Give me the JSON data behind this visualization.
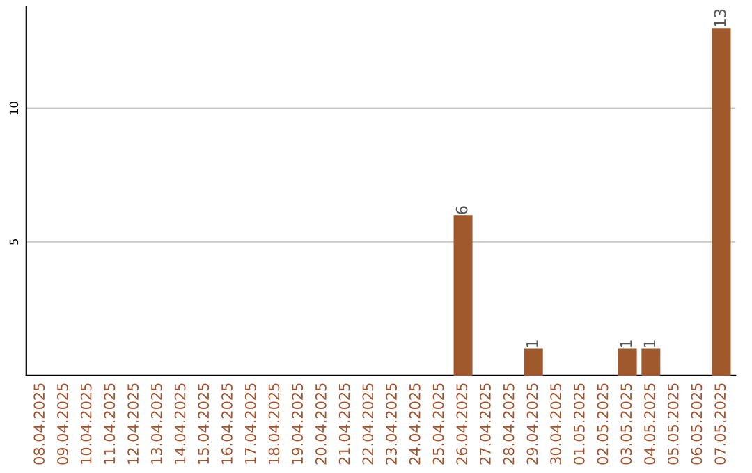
{
  "chart_data": {
    "type": "bar",
    "categories": [
      "08.04.2025",
      "09.04.2025",
      "10.04.2025",
      "11.04.2025",
      "12.04.2025",
      "13.04.2025",
      "14.04.2025",
      "15.04.2025",
      "16.04.2025",
      "17.04.2025",
      "18.04.2025",
      "19.04.2025",
      "20.04.2025",
      "21.04.2025",
      "22.04.2025",
      "23.04.2025",
      "24.04.2025",
      "25.04.2025",
      "26.04.2025",
      "27.04.2025",
      "28.04.2025",
      "29.04.2025",
      "30.04.2025",
      "01.05.2025",
      "02.05.2025",
      "03.05.2025",
      "04.05.2025",
      "05.05.2025",
      "06.05.2025",
      "07.05.2025"
    ],
    "values": [
      0,
      0,
      0,
      0,
      0,
      0,
      0,
      0,
      0,
      0,
      0,
      0,
      0,
      0,
      0,
      0,
      0,
      0,
      6,
      0,
      0,
      1,
      0,
      0,
      0,
      1,
      1,
      0,
      0,
      13
    ],
    "value_labels": [
      null,
      null,
      null,
      null,
      null,
      null,
      null,
      null,
      null,
      null,
      null,
      null,
      null,
      null,
      null,
      null,
      null,
      null,
      "6",
      null,
      null,
      "1",
      null,
      null,
      null,
      "1",
      "1",
      null,
      null,
      "13"
    ],
    "color": "#a0582d",
    "ylim": [
      0,
      13.8
    ],
    "yticks": [
      5,
      10
    ],
    "grid": "y"
  }
}
